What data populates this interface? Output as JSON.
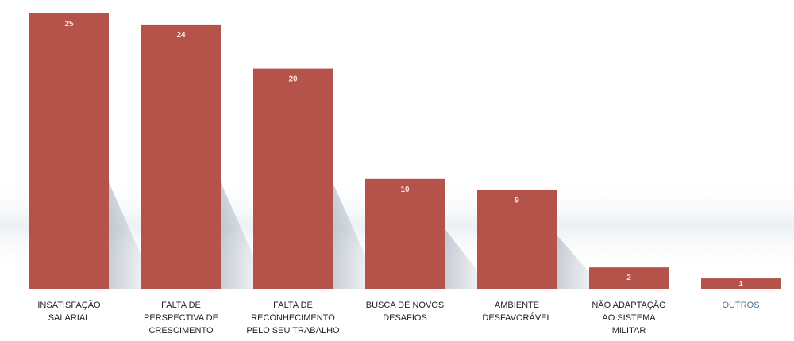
{
  "colors": {
    "bar": "#b5534b",
    "value_label": "#f6e1dc",
    "category_label": "#222222",
    "category_label_muted": "#4d7290"
  },
  "chart_data": {
    "type": "bar",
    "title": "",
    "xlabel": "",
    "ylabel": "",
    "ylim": [
      0,
      25
    ],
    "grid": false,
    "legend": "none",
    "categories": [
      [
        "INSATISFAÇÃO",
        "SALARIAL"
      ],
      [
        "FALTA DE",
        "PERSPECTIVA DE",
        "CRESCIMENTO"
      ],
      [
        "FALTA DE",
        "RECONHECIMENTO",
        "PELO SEU TRABALHO"
      ],
      [
        "BUSCA DE NOVOS",
        "DESAFIOS"
      ],
      [
        "AMBIENTE",
        "DESFAVORÁVEL"
      ],
      [
        "NÃO ADAPTAÇÃO",
        "AO SISTEMA",
        "MILITAR"
      ],
      [
        "OUTROS"
      ]
    ],
    "values": [
      25,
      24,
      20,
      10,
      9,
      2,
      1
    ]
  }
}
